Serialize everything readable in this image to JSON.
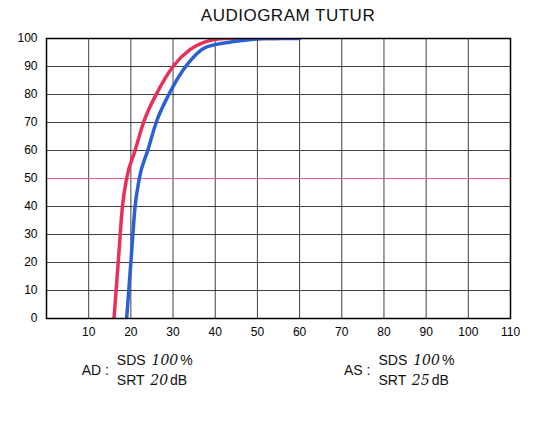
{
  "chart_data": {
    "type": "line",
    "title": "AUDIOGRAM TUTUR",
    "xlim": [
      0,
      110
    ],
    "xticks": [
      10,
      20,
      30,
      40,
      50,
      60,
      70,
      80,
      90,
      100,
      110
    ],
    "ylim": [
      0,
      100
    ],
    "yticks": [
      0,
      10,
      20,
      30,
      40,
      50,
      60,
      70,
      80,
      90,
      100
    ],
    "grid": true,
    "series": [
      {
        "color": "#e8305a",
        "x": [
          16,
          17,
          18,
          19,
          21,
          23,
          26,
          30,
          34,
          38,
          42,
          50,
          55
        ],
        "values": [
          0,
          20,
          40,
          50,
          60,
          70,
          80,
          90,
          96,
          99,
          100,
          100,
          100
        ]
      },
      {
        "color": "#2a5fd6",
        "x": [
          19,
          20,
          21,
          22,
          24,
          26,
          29,
          33,
          38,
          45,
          52,
          60
        ],
        "values": [
          0,
          20,
          40,
          50,
          60,
          70,
          80,
          90,
          97,
          99,
          100,
          100
        ]
      }
    ],
    "reference_line": {
      "y": 50,
      "color": "#e8607e"
    },
    "results": [
      {
        "label": "AD :",
        "sds_label": "SDS",
        "sds": 100,
        "sds_unit": "%",
        "srt_label": "SRT",
        "srt": 20,
        "srt_unit": "dB"
      },
      {
        "label": "AS :",
        "sds_label": "SDS",
        "sds": 100,
        "sds_unit": "%",
        "srt_label": "SRT",
        "srt": 25,
        "srt_unit": "dB"
      }
    ]
  }
}
